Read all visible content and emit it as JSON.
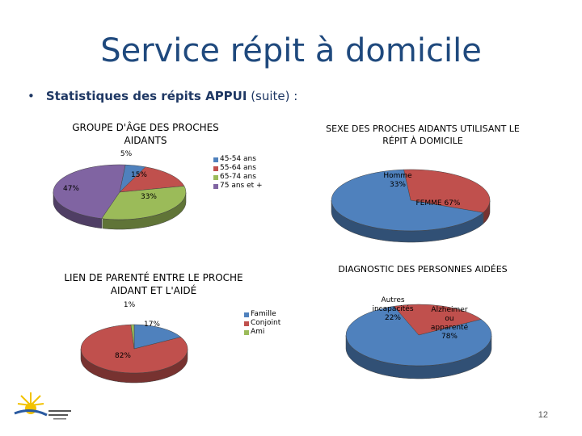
{
  "slide": {
    "title": "Service répit à domicile",
    "bullet": "•",
    "subtitle_bold": "Statistiques des répits APPUI",
    "subtitle_rest": " (suite) :",
    "page_number": "12"
  },
  "chart_data": [
    {
      "type": "pie",
      "title_line1": "GROUPE D'ÂGE DES PROCHES",
      "title_line2": "AIDANTS",
      "categories": [
        "45-54 ans",
        "55-64 ans",
        "65-74 ans",
        "75 ans et +"
      ],
      "values": [
        5,
        15,
        33,
        47
      ],
      "labels": [
        "5%",
        "15%",
        "33%",
        "47%"
      ],
      "colors": [
        "#4f81bd",
        "#c0504d",
        "#9bbb59",
        "#8064a2"
      ],
      "legend": "right"
    },
    {
      "type": "pie",
      "title_line1": "SEXE DES PROCHES AIDANTS UTILISANT LE",
      "title_line2": "RÉPIT À DOMICILE",
      "categories": [
        "Homme",
        "FEMME"
      ],
      "values": [
        33,
        67
      ],
      "labels": [
        "Homme\n33%",
        "FEMME 67%"
      ],
      "colors": [
        "#c0504d",
        "#4f81bd"
      ]
    },
    {
      "type": "pie",
      "title_line1": "LIEN DE PARENTÉ ENTRE LE PROCHE",
      "title_line2": "AIDANT ET L'AIDÉ",
      "categories": [
        "Famille",
        "Conjoint",
        "Ami"
      ],
      "values": [
        17,
        82,
        1
      ],
      "labels": [
        "17%",
        "82%",
        "1%"
      ],
      "colors": [
        "#4f81bd",
        "#c0504d",
        "#9bbb59"
      ],
      "legend": "right"
    },
    {
      "type": "pie",
      "title_line1": "DIAGNOSTIC DES PERSONNES AIDÉES",
      "title_line2": "",
      "categories": [
        "Autres incapacités",
        "Alzheimer ou apparenté"
      ],
      "values": [
        22,
        78
      ],
      "labels": [
        "Autres\nincapacités\n22%",
        "Alzheimer\nou\napparenté\n78%"
      ],
      "colors": [
        "#c0504d",
        "#4f81bd"
      ]
    }
  ]
}
